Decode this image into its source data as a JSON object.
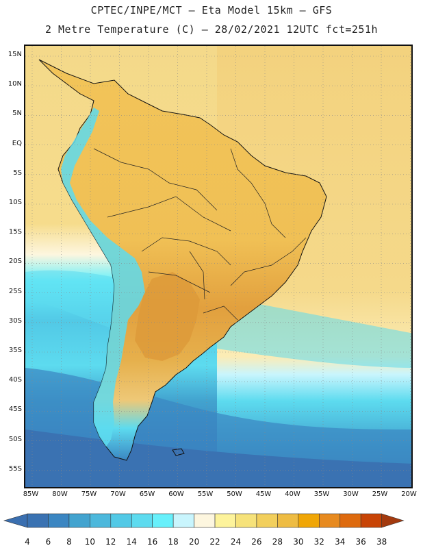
{
  "title_line1": "CPTEC/INPE/MCT –  Eta Model 15km – GFS",
  "title_line2": "2 Metre Temperature (C) – 28/02/2021 12UTC fct=251h",
  "lat_labels": [
    "15N",
    "10N",
    "5N",
    "EQ",
    "5S",
    "10S",
    "15S",
    "20S",
    "25S",
    "30S",
    "35S",
    "40S",
    "45S",
    "50S",
    "55S"
  ],
  "lon_labels": [
    "85W",
    "80W",
    "75W",
    "70W",
    "65W",
    "60W",
    "55W",
    "50W",
    "45W",
    "40W",
    "35W",
    "30W",
    "25W",
    "20W"
  ],
  "colorbar": {
    "values": [
      "4",
      "6",
      "8",
      "10",
      "12",
      "14",
      "16",
      "18",
      "20",
      "22",
      "24",
      "26",
      "28",
      "30",
      "32",
      "34",
      "36",
      "38"
    ],
    "colors": [
      "#3a72b2",
      "#3b86c2",
      "#42a3cf",
      "#4cb8dc",
      "#52c9e6",
      "#5ddbef",
      "#67f0fb",
      "#c9f5fd",
      "#fdf6df",
      "#fdf39b",
      "#f6e27a",
      "#f2cf5c",
      "#eebc43",
      "#f0a606",
      "#e78a1f",
      "#de6a0e",
      "#c84406",
      "#a33a0f"
    ],
    "under_color": "#3a6fb0",
    "over_color": "#a33a0f"
  },
  "map": {
    "ocean_north_color": "#f4d98a",
    "ocean_south_colors": [
      "#fdf6df",
      "#c9f5fd",
      "#67f0fb",
      "#52c9e6",
      "#42a3cf",
      "#3b86c2",
      "#3a72b2"
    ],
    "land_color": "#f0c45a",
    "hot_color": "#e0a03a",
    "andes_color": "#5fd3ea",
    "grid_color": "#888888",
    "coast_color": "#111111"
  }
}
